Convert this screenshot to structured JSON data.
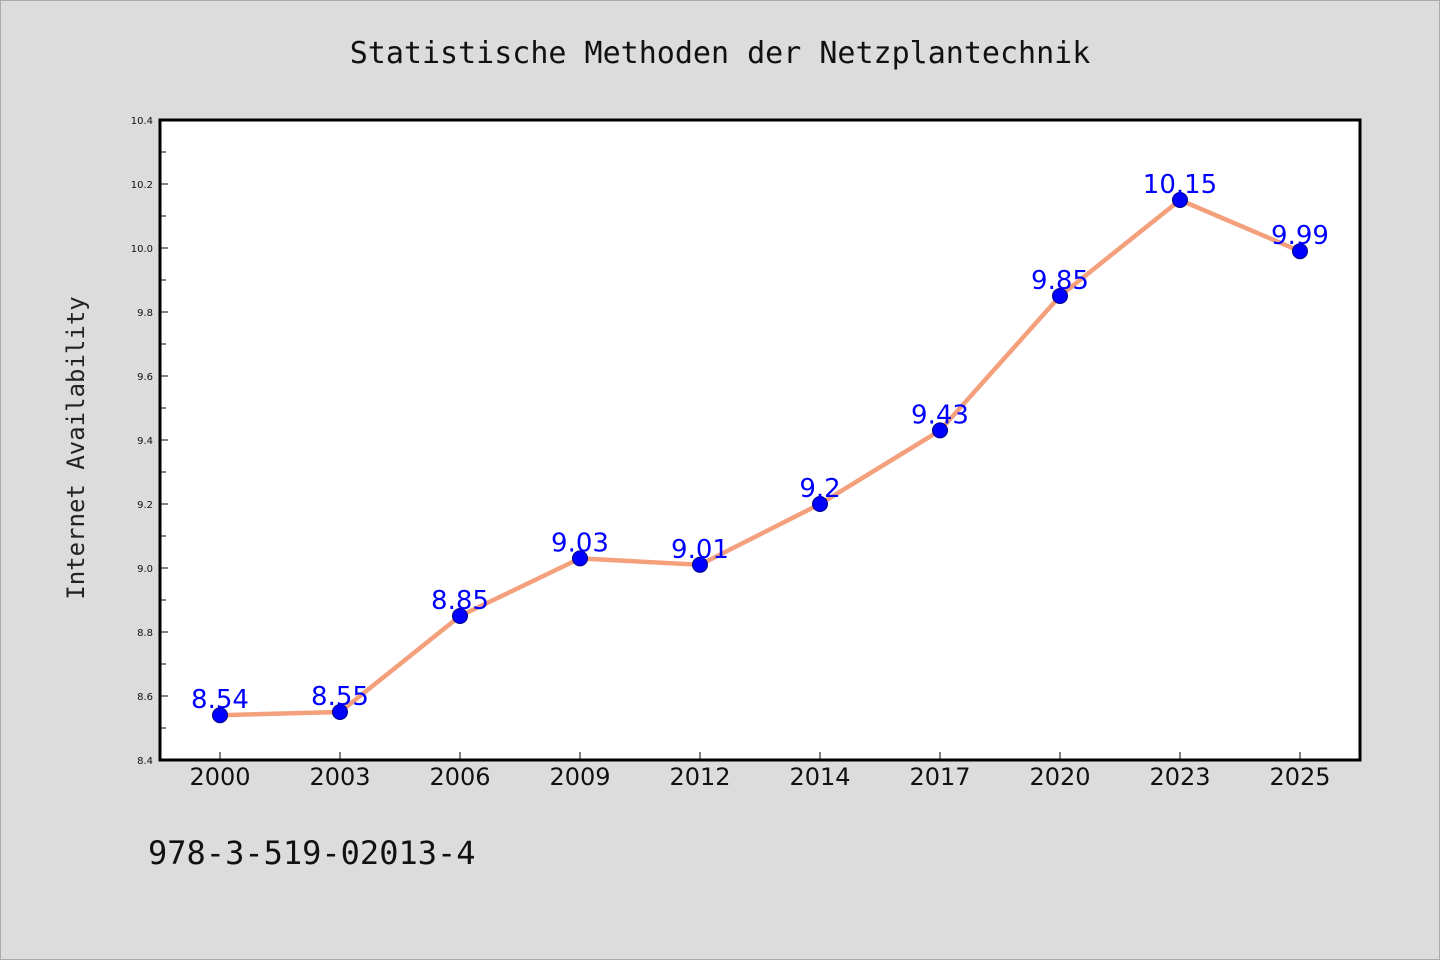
{
  "colors": {
    "background": "#dcdcdc",
    "plot_background": "#ffffff",
    "line": "#f4a07c",
    "marker": "#0000ff",
    "marker_edge": "#000080",
    "data_label": "#0000ff"
  },
  "chart_data": {
    "type": "line",
    "title": "Statistische Methoden der Netzplantechnik",
    "xlabel": "",
    "ylabel": "Internet Availability",
    "categories": [
      "2000",
      "2003",
      "2006",
      "2009",
      "2012",
      "2014",
      "2017",
      "2020",
      "2023",
      "2025"
    ],
    "series": [
      {
        "values": [
          8.54,
          8.55,
          8.85,
          9.03,
          9.01,
          9.2,
          9.43,
          9.85,
          10.15,
          9.99
        ],
        "data_labels": [
          "8.54",
          "8.55",
          "8.85",
          "9.03",
          "9.01",
          "9.2",
          "9.43",
          "9.85",
          "10.15",
          "9.99"
        ]
      }
    ],
    "ylim": [
      8.4,
      10.4
    ],
    "y_ticks": [
      8.4,
      8.6,
      8.8,
      9.0,
      9.2,
      9.4,
      9.6,
      9.8,
      10.0,
      10.2,
      10.4
    ],
    "y_tick_labels": [
      "8.4",
      "8.6",
      "8.8",
      "9.0",
      "9.2",
      "9.4",
      "9.6",
      "9.8",
      "10.0",
      "10.2",
      "10.4"
    ],
    "grid": false,
    "legend": "none"
  },
  "footer": {
    "isbn": "978-3-519-02013-4"
  }
}
